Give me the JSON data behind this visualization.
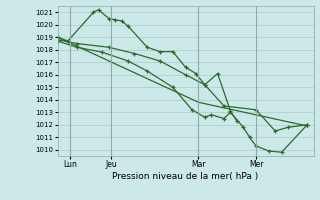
{
  "bg_color": "#cce8e8",
  "line_color": "#2d6a2d",
  "grid_color": "#aacccc",
  "xlabel": "Pression niveau de la mer( hPa )",
  "xtick_labels": [
    "Lun",
    "Jeu",
    "Mar",
    "Mer"
  ],
  "ylim": [
    1009.5,
    1021.5
  ],
  "ytick_vals": [
    1010,
    1011,
    1012,
    1013,
    1014,
    1015,
    1016,
    1017,
    1018,
    1019,
    1020,
    1021
  ],
  "xlim": [
    0,
    20
  ],
  "xtick_pos": [
    1.0,
    4.2,
    11.0,
    15.5
  ],
  "vline_pos": [
    1.0,
    4.2,
    11.0,
    15.5
  ],
  "line1_x": [
    0.0,
    0.8,
    2.8,
    3.2,
    4.0,
    4.5,
    5.0,
    5.5,
    7.0,
    8.0,
    9.0,
    10.0,
    10.8,
    11.5,
    12.5,
    13.5,
    14.0
  ],
  "line1_y": [
    1019.0,
    1018.7,
    1021.0,
    1021.2,
    1020.5,
    1020.4,
    1020.3,
    1019.9,
    1018.2,
    1017.85,
    1017.85,
    1016.6,
    1016.1,
    1015.2,
    1016.1,
    1013.1,
    1012.3
  ],
  "line2_x": [
    0.0,
    11.0,
    19.5
  ],
  "line2_y": [
    1019.0,
    1013.8,
    1011.9
  ],
  "line3_x": [
    0.0,
    1.5,
    4.0,
    6.0,
    8.0,
    10.0,
    11.5,
    13.0,
    15.5,
    17.0,
    18.0,
    19.5
  ],
  "line3_y": [
    1018.8,
    1018.5,
    1018.2,
    1017.7,
    1017.1,
    1016.0,
    1015.2,
    1013.5,
    1013.2,
    1011.5,
    1011.8,
    1012.0
  ],
  "line4_x": [
    0.0,
    1.5,
    3.5,
    5.5,
    7.0,
    9.0,
    10.5,
    11.5,
    12.0,
    13.0,
    13.5,
    14.5,
    15.0,
    15.5,
    16.5,
    17.5,
    19.5
  ],
  "line4_y": [
    1018.7,
    1018.2,
    1017.8,
    1017.1,
    1016.3,
    1015.0,
    1013.2,
    1012.6,
    1012.8,
    1012.5,
    1013.0,
    1011.8,
    1011.0,
    1010.3,
    1009.9,
    1009.8,
    1012.0
  ]
}
